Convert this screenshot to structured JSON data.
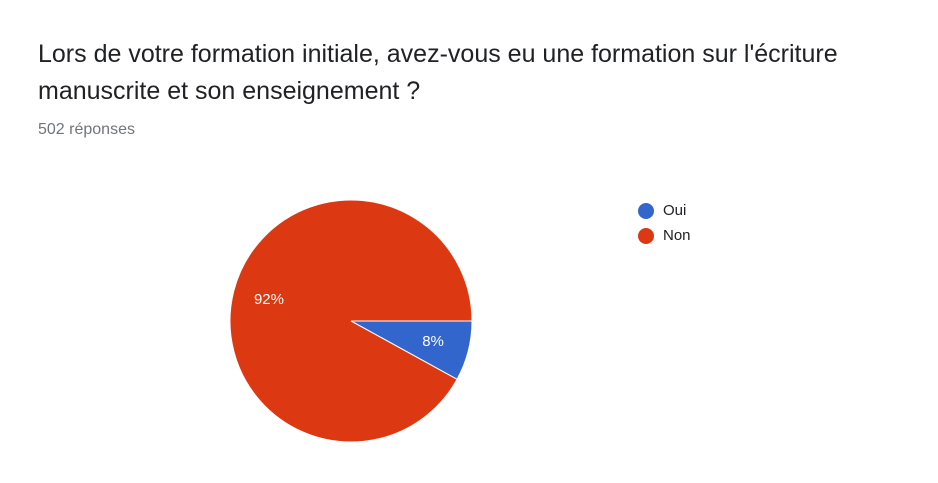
{
  "question": {
    "title": "Lors de votre formation initiale, avez-vous eu une formation sur l'écriture manuscrite et son enseignement ?",
    "response_count": "502 réponses"
  },
  "chart_data": {
    "type": "pie",
    "title": "",
    "slices": [
      {
        "label": "Oui",
        "value": 8,
        "display": "8%",
        "color": "#3366cc"
      },
      {
        "label": "Non",
        "value": 92,
        "display": "92%",
        "color": "#dc3912"
      }
    ],
    "legend_position": "right"
  }
}
